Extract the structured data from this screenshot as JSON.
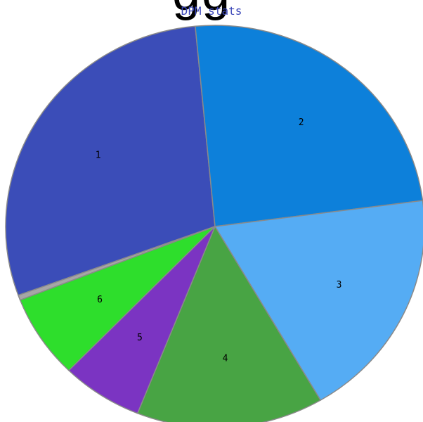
{
  "header": {
    "overflow_glyphs": "gg"
  },
  "chart_data": {
    "type": "pie",
    "title": "DPM stats",
    "start_angle_deg": 250,
    "slices": [
      {
        "label": "1",
        "value": 0.305,
        "color": "#3b4db8"
      },
      {
        "label": "2",
        "value": 0.2567,
        "color": "#0d80da"
      },
      {
        "label": "3",
        "value": 0.1958,
        "color": "#55acf4"
      },
      {
        "label": "4",
        "value": 0.1516,
        "color": "#48a444"
      },
      {
        "label": "5",
        "value": 0.0658,
        "color": "#7b34c2"
      },
      {
        "label": "6",
        "value": 0.0708,
        "color": "#2ede2c"
      },
      {
        "label": "",
        "value": 0.0042,
        "color": "#a6a6a6"
      }
    ],
    "border_color": "#8a8a8a"
  }
}
